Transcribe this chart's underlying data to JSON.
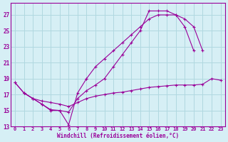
{
  "xlabel": "Windchill (Refroidissement éolien,°C)",
  "bg_color": "#d6eff5",
  "grid_color": "#b0d8e0",
  "line_color": "#990099",
  "xlim": [
    -0.5,
    23.5
  ],
  "ylim": [
    13,
    28
  ],
  "yticks": [
    13,
    15,
    17,
    19,
    21,
    23,
    25,
    27
  ],
  "xticks": [
    0,
    1,
    2,
    3,
    4,
    5,
    6,
    7,
    8,
    9,
    10,
    11,
    12,
    13,
    14,
    15,
    16,
    17,
    18,
    19,
    20,
    21,
    22,
    23
  ],
  "line1": {
    "x": [
      0,
      1,
      2,
      3,
      4,
      5,
      6,
      7,
      8
    ],
    "y": [
      18.5,
      17.2,
      16.5,
      15.8,
      15.0,
      15.0,
      13.2,
      17.2,
      19.0
    ]
  },
  "line2": {
    "x": [
      1,
      2,
      3,
      4,
      5,
      6,
      7,
      8,
      9,
      10,
      11,
      12,
      13,
      14,
      15,
      16,
      17,
      18,
      19,
      20
    ],
    "y": [
      17.2,
      16.5,
      15.8,
      15.1,
      15.0,
      14.8,
      16.5,
      17.5,
      18.2,
      19.0,
      20.5,
      22.0,
      23.5,
      25.0,
      27.5,
      27.5,
      27.5,
      27.0,
      25.5,
      22.5
    ]
  },
  "line3": {
    "x": [
      0,
      1,
      2,
      3,
      4,
      5,
      6,
      7,
      8,
      9,
      10,
      11,
      12,
      13,
      14,
      15,
      16,
      17,
      18,
      19,
      20,
      21,
      22,
      23
    ],
    "y": [
      18.5,
      17.2,
      16.5,
      16.2,
      16.0,
      15.8,
      15.5,
      16.0,
      16.5,
      16.8,
      17.0,
      17.2,
      17.3,
      17.5,
      17.7,
      17.9,
      18.0,
      18.1,
      18.2,
      18.2,
      18.2,
      18.3,
      19.0,
      18.8
    ]
  },
  "line4": {
    "x": [
      8,
      9,
      10,
      11,
      12,
      13,
      14,
      15,
      16,
      17,
      18,
      19,
      20,
      21
    ],
    "y": [
      19.0,
      20.5,
      21.5,
      22.5,
      23.5,
      24.5,
      25.5,
      26.5,
      27.0,
      27.0,
      27.0,
      26.5,
      25.5,
      22.5
    ]
  }
}
